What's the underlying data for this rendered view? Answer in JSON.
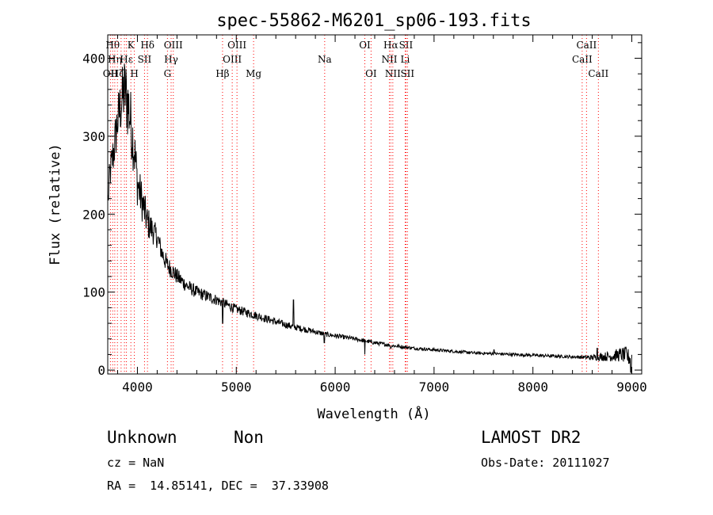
{
  "footer": {
    "class_label": "Unknown",
    "subclass_label": "Non",
    "survey": "LAMOST DR2",
    "cz": "cz = NaN",
    "obs_date": "Obs-Date: 20111027",
    "coords": "RA =  14.85141, DEC =  37.33908"
  },
  "chart_data": {
    "type": "line",
    "title": "spec-55862-M6201_sp06-193.fits",
    "xlabel": "Wavelength (Å)",
    "ylabel": "Flux (relative)",
    "xlim": [
      3700,
      9100
    ],
    "ylim": [
      -5,
      430
    ],
    "xticks": [
      4000,
      5000,
      6000,
      7000,
      8000,
      9000
    ],
    "yticks": [
      0,
      100,
      200,
      300,
      400
    ],
    "grid": false,
    "line_color": "#000000",
    "marker_color": "#ff0000",
    "continuum": [
      [
        3700,
        210
      ],
      [
        3720,
        250
      ],
      [
        3760,
        280
      ],
      [
        3800,
        320
      ],
      [
        3840,
        345
      ],
      [
        3870,
        360
      ],
      [
        3890,
        350
      ],
      [
        3920,
        330
      ],
      [
        3950,
        300
      ],
      [
        3980,
        270
      ],
      [
        4000,
        240
      ],
      [
        4050,
        215
      ],
      [
        4100,
        190
      ],
      [
        4150,
        180
      ],
      [
        4200,
        170
      ],
      [
        4250,
        150
      ],
      [
        4300,
        135
      ],
      [
        4350,
        128
      ],
      [
        4400,
        120
      ],
      [
        4500,
        108
      ],
      [
        4600,
        100
      ],
      [
        4700,
        95
      ],
      [
        4800,
        90
      ],
      [
        4900,
        84
      ],
      [
        5000,
        78
      ],
      [
        5100,
        74
      ],
      [
        5200,
        70
      ],
      [
        5300,
        66
      ],
      [
        5400,
        62
      ],
      [
        5500,
        58
      ],
      [
        5600,
        55
      ],
      [
        5700,
        52
      ],
      [
        5800,
        49
      ],
      [
        5900,
        46
      ],
      [
        6000,
        44
      ],
      [
        6200,
        40
      ],
      [
        6400,
        35
      ],
      [
        6600,
        31
      ],
      [
        6800,
        28
      ],
      [
        7000,
        26
      ],
      [
        7200,
        24
      ],
      [
        7400,
        22
      ],
      [
        7600,
        21
      ],
      [
        7800,
        20
      ],
      [
        8000,
        19
      ],
      [
        8200,
        18
      ],
      [
        8400,
        17
      ],
      [
        8600,
        16
      ],
      [
        8800,
        18
      ],
      [
        8900,
        20
      ],
      [
        9000,
        15
      ]
    ],
    "noise": [
      [
        3700,
        20
      ],
      [
        3900,
        50
      ],
      [
        4000,
        30
      ],
      [
        4200,
        14
      ],
      [
        4500,
        9
      ],
      [
        5000,
        6
      ],
      [
        6000,
        3
      ],
      [
        7000,
        2
      ],
      [
        8500,
        2
      ],
      [
        8800,
        7
      ],
      [
        9000,
        12
      ]
    ],
    "spikes": [
      {
        "x": 4861,
        "y": 60
      },
      {
        "x": 5577,
        "y": 90
      },
      {
        "x": 5890,
        "y": 35
      },
      {
        "x": 6300,
        "y": 20
      },
      {
        "x": 6563,
        "y": 28
      },
      {
        "x": 7605,
        "y": 26
      },
      {
        "x": 8650,
        "y": 28
      },
      {
        "x": 8940,
        "y": 30
      },
      {
        "x": 8990,
        "y": -3
      }
    ],
    "lines": [
      {
        "x": 3727,
        "label": "OII",
        "row": 2
      },
      {
        "x": 3750,
        "label": "Hθ",
        "row": 0
      },
      {
        "x": 3771,
        "label": "Hη",
        "row": 1
      },
      {
        "x": 3798,
        "label": "Hζ",
        "row": 2
      },
      {
        "x": 3835,
        "label": "",
        "row": 0
      },
      {
        "x": 3869,
        "label": "",
        "row": 1
      },
      {
        "x": 3889,
        "label": "Hε",
        "row": 1
      },
      {
        "x": 3934,
        "label": "K",
        "row": 0
      },
      {
        "x": 3969,
        "label": "H",
        "row": 2
      },
      {
        "x": 4072,
        "label": "SII",
        "row": 1
      },
      {
        "x": 4102,
        "label": "Hδ",
        "row": 0
      },
      {
        "x": 4304,
        "label": "G",
        "row": 2
      },
      {
        "x": 4341,
        "label": "Hγ",
        "row": 1
      },
      {
        "x": 4363,
        "label": "OIII",
        "row": 0
      },
      {
        "x": 4861,
        "label": "Hβ",
        "row": 2
      },
      {
        "x": 4959,
        "label": "OIII",
        "row": 1
      },
      {
        "x": 5007,
        "label": "OIII",
        "row": 0
      },
      {
        "x": 5175,
        "label": "Mg",
        "row": 2
      },
      {
        "x": 5894,
        "label": "Na",
        "row": 1
      },
      {
        "x": 6300,
        "label": "OI",
        "row": 0
      },
      {
        "x": 6363,
        "label": "OI",
        "row": 2
      },
      {
        "x": 6548,
        "label": "NII",
        "row": 1
      },
      {
        "x": 6563,
        "label": "Hα",
        "row": 0
      },
      {
        "x": 6583,
        "label": "NII",
        "row": 2
      },
      {
        "x": 6708,
        "label": "Li",
        "row": 1
      },
      {
        "x": 6716,
        "label": "SII",
        "row": 0
      },
      {
        "x": 6731,
        "label": "SII",
        "row": 2
      },
      {
        "x": 8498,
        "label": "CaII",
        "row": 1
      },
      {
        "x": 8542,
        "label": "CaII",
        "row": 0
      },
      {
        "x": 8662,
        "label": "CaII",
        "row": 2
      }
    ]
  }
}
